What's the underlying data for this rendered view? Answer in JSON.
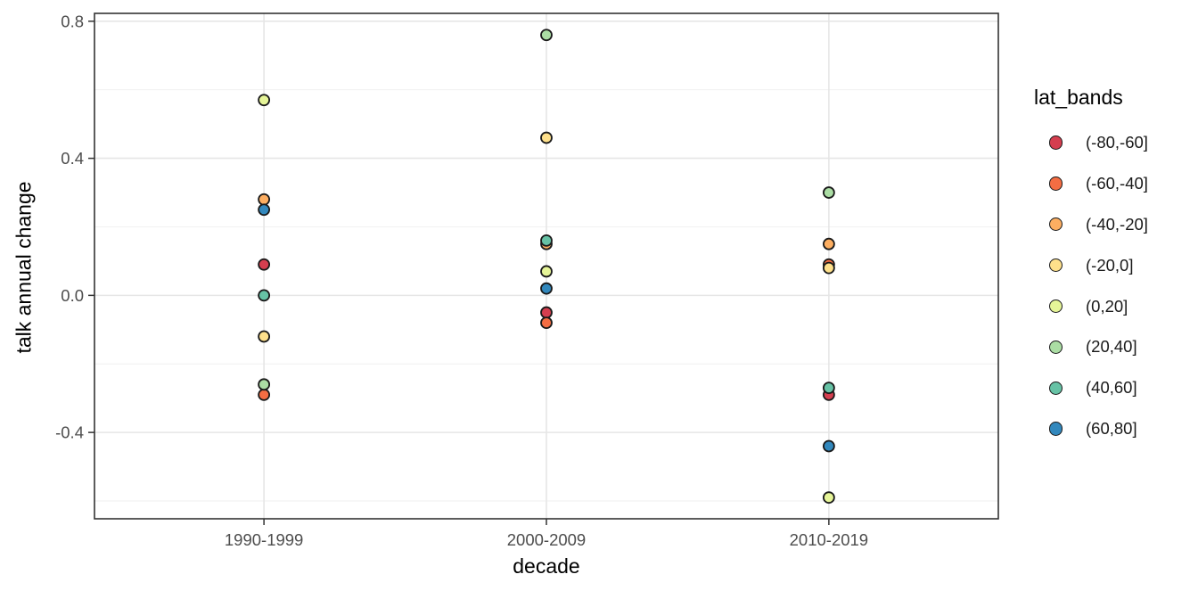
{
  "chart_data": {
    "type": "scatter",
    "title": "",
    "xlabel": "decade",
    "ylabel": "talk annual change",
    "legend_title": "lat_bands",
    "legend_position": "right",
    "categories": [
      "1990-1999",
      "2000-2009",
      "2010-2019"
    ],
    "series": [
      {
        "name": "(-80,-60]",
        "color": "#D53E4F",
        "values": [
          0.09,
          -0.05,
          -0.29
        ]
      },
      {
        "name": "(-60,-40]",
        "color": "#F46D43",
        "values": [
          -0.29,
          -0.08,
          0.09
        ]
      },
      {
        "name": "(-40,-20]",
        "color": "#FDAE61",
        "values": [
          0.28,
          0.15,
          0.15
        ]
      },
      {
        "name": "(-20,0]",
        "color": "#FEE08B",
        "values": [
          -0.12,
          0.46,
          0.08
        ]
      },
      {
        "name": "(0,20]",
        "color": "#E6F598",
        "values": [
          0.57,
          0.07,
          -0.59
        ]
      },
      {
        "name": "(20,40]",
        "color": "#ABDDA4",
        "values": [
          -0.26,
          0.76,
          0.3
        ]
      },
      {
        "name": "(40,60]",
        "color": "#66C2A5",
        "values": [
          0.0,
          0.16,
          -0.27
        ]
      },
      {
        "name": "(60,80]",
        "color": "#3288BD",
        "values": [
          0.25,
          0.02,
          -0.44
        ]
      }
    ],
    "y_ticks": [
      0.8,
      0.4,
      0.0,
      -0.4
    ],
    "y_tick_labels": [
      "0.8",
      "0.4",
      "0.0",
      "-0.4"
    ],
    "y_minor_ticks": [
      0.6,
      0.2,
      -0.2,
      -0.6
    ],
    "ylim": [
      -0.652,
      0.823
    ],
    "grid": true,
    "point_style": {
      "radius": 6,
      "stroke": "#1a1a1a",
      "stroke_width": 1.8
    },
    "colors": {
      "background": "#FFFFFF",
      "panel_background": "#FFFFFF",
      "panel_border": "#333333",
      "grid_major": "#E6E6E6",
      "grid_minor": "#EFEFEF",
      "tick_mark": "#333333",
      "tick_label": "#4D4D4D",
      "axis_title": "#000000",
      "legend_text": "#1a1a1a"
    }
  }
}
